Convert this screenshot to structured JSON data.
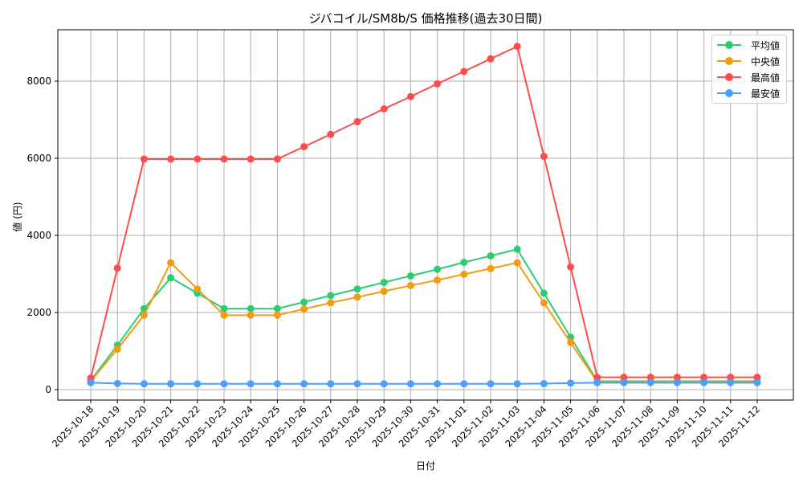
{
  "chart_data": {
    "type": "line",
    "title": "ジバコイル/SM8b/S 価格推移(過去30日間)",
    "xlabel": "日付",
    "ylabel": "値 (円)",
    "ylim": [
      -300,
      9350
    ],
    "yticks": [
      0,
      2000,
      4000,
      6000,
      8000
    ],
    "grid": true,
    "legend_position": "upper right",
    "categories": [
      "2025-10-18",
      "2025-10-19",
      "2025-10-20",
      "2025-10-21",
      "2025-10-22",
      "2025-10-23",
      "2025-10-24",
      "2025-10-25",
      "2025-10-26",
      "2025-10-27",
      "2025-10-28",
      "2025-10-29",
      "2025-10-30",
      "2025-10-31",
      "2025-11-01",
      "2025-11-02",
      "2025-11-03",
      "2025-11-04",
      "2025-11-05",
      "2025-11-06",
      "2025-11-07",
      "2025-11-08",
      "2025-11-09",
      "2025-11-10",
      "2025-11-11",
      "2025-11-12"
    ],
    "series": [
      {
        "name": "平均値",
        "color": "#2ecc71",
        "values": [
          240,
          1150,
          2100,
          2900,
          2500,
          2100,
          2100,
          2100,
          2270,
          2440,
          2610,
          2780,
          2950,
          3120,
          3300,
          3470,
          3640,
          2500,
          1360,
          220,
          220,
          220,
          220,
          220,
          220,
          220
        ]
      },
      {
        "name": "中央値",
        "color": "#f39c12",
        "values": [
          220,
          1050,
          1930,
          3290,
          2610,
          1930,
          1930,
          1930,
          2090,
          2250,
          2400,
          2550,
          2700,
          2840,
          2990,
          3140,
          3290,
          2250,
          1220,
          200,
          200,
          200,
          200,
          200,
          200,
          200
        ]
      },
      {
        "name": "最高値",
        "color": "#ff4d4d",
        "values": [
          300,
          3150,
          5980,
          5980,
          5980,
          5980,
          5980,
          5980,
          6300,
          6620,
          6950,
          7280,
          7600,
          7930,
          8250,
          8580,
          8900,
          6050,
          3180,
          320,
          320,
          320,
          320,
          320,
          320,
          320
        ]
      },
      {
        "name": "最安値",
        "color": "#4d9fff",
        "values": [
          180,
          160,
          150,
          150,
          150,
          150,
          150,
          150,
          150,
          150,
          150,
          150,
          150,
          150,
          150,
          150,
          150,
          155,
          170,
          180,
          180,
          180,
          180,
          180,
          180,
          180
        ]
      }
    ]
  }
}
